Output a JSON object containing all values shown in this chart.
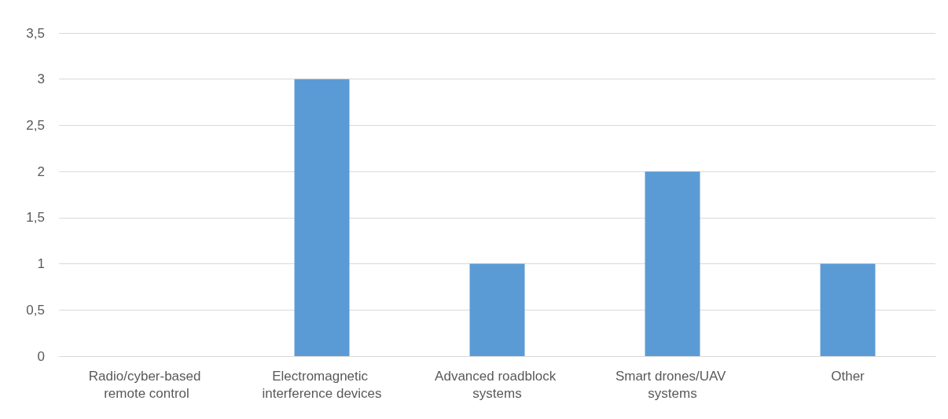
{
  "chart_data": {
    "type": "bar",
    "categories": [
      "Radio/cyber-based remote control",
      "Electromagnetic interference devices",
      "Advanced roadblock systems",
      "Smart drones/UAV systems",
      "Other"
    ],
    "values": [
      0,
      3,
      1,
      2,
      1
    ],
    "color": "#5b9bd5",
    "ylim": [
      0,
      3.5
    ],
    "yticks": [
      0,
      {
        "value": 0.5,
        "label": "0,5"
      },
      1,
      {
        "value": 1.5,
        "label": "1,5"
      },
      2,
      {
        "value": 2.5,
        "label": "2,5"
      },
      3,
      {
        "value": 3.5,
        "label": "3,5"
      }
    ],
    "grid": "y"
  }
}
